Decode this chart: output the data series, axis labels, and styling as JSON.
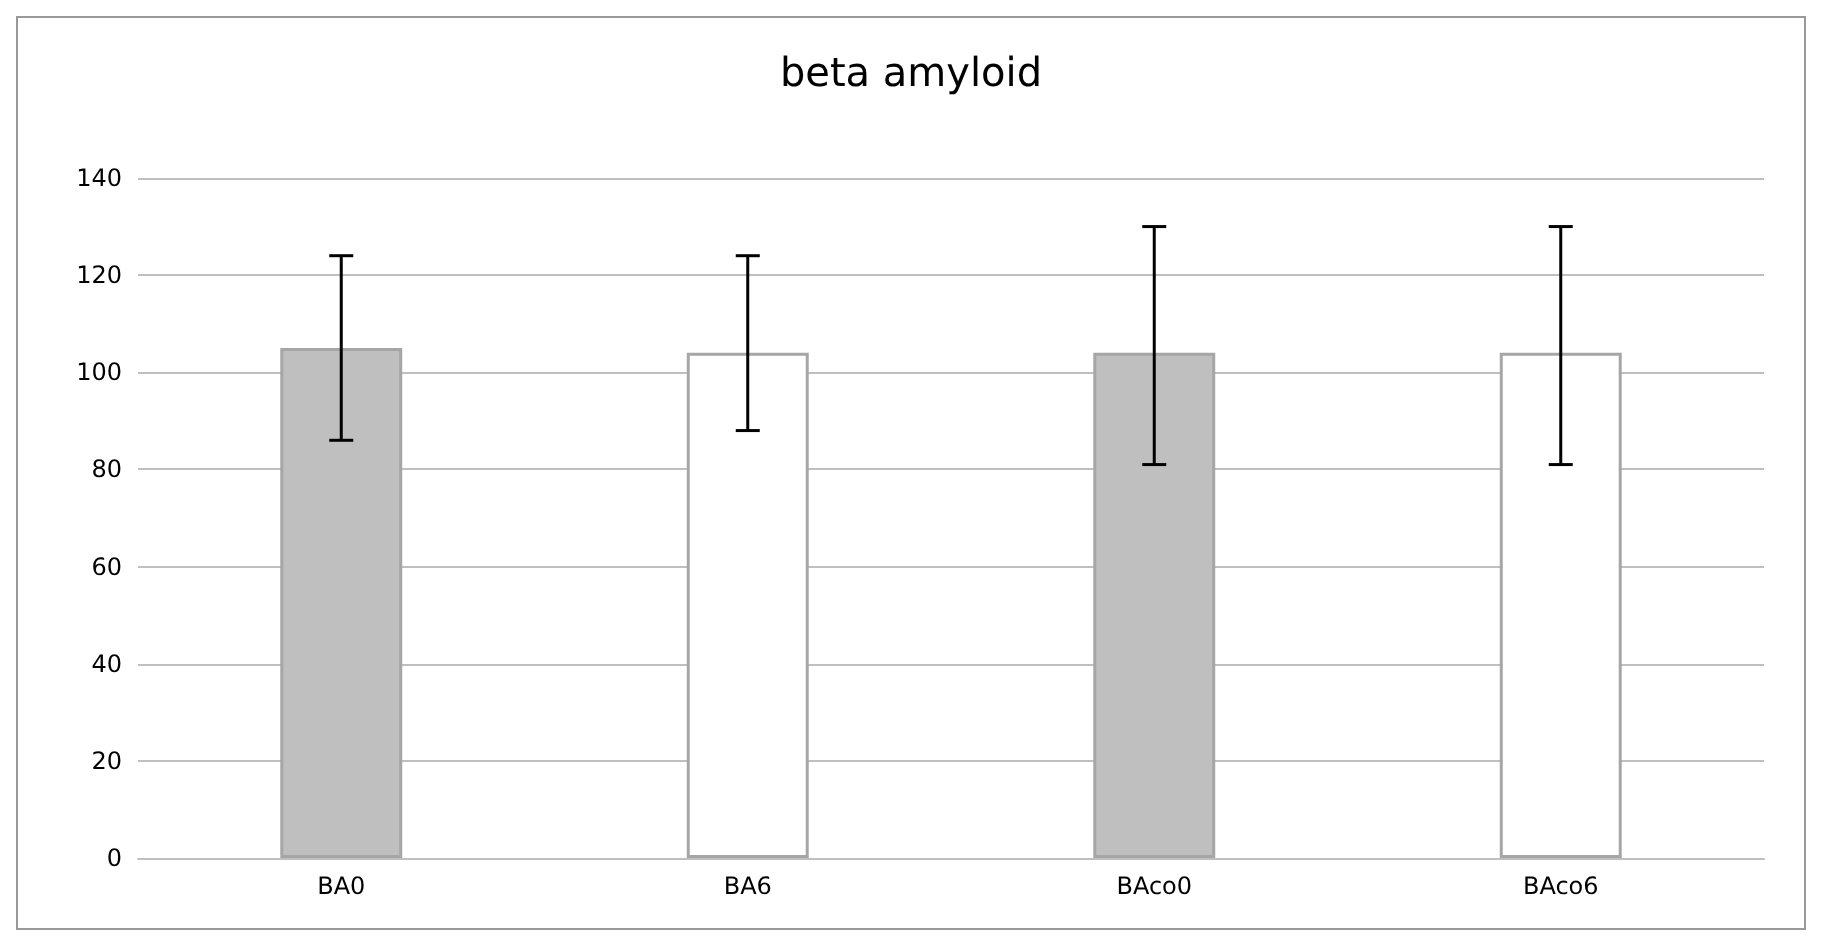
{
  "chart_data": {
    "type": "bar",
    "title": "beta amyloid",
    "categories": [
      "BA0",
      "BA6",
      "BAco0",
      "BAco6"
    ],
    "values": [
      105,
      104,
      104,
      104
    ],
    "colors": [
      "#bfbfbf",
      "#ffffff",
      "#bfbfbf",
      "#ffffff"
    ],
    "errors": [
      [
        86,
        124
      ],
      [
        88,
        124
      ],
      [
        81,
        130
      ],
      [
        81,
        130
      ]
    ],
    "ylim": [
      0,
      140
    ],
    "yticks": [
      0,
      20,
      40,
      60,
      80,
      100,
      120,
      140
    ],
    "grid": "y"
  }
}
